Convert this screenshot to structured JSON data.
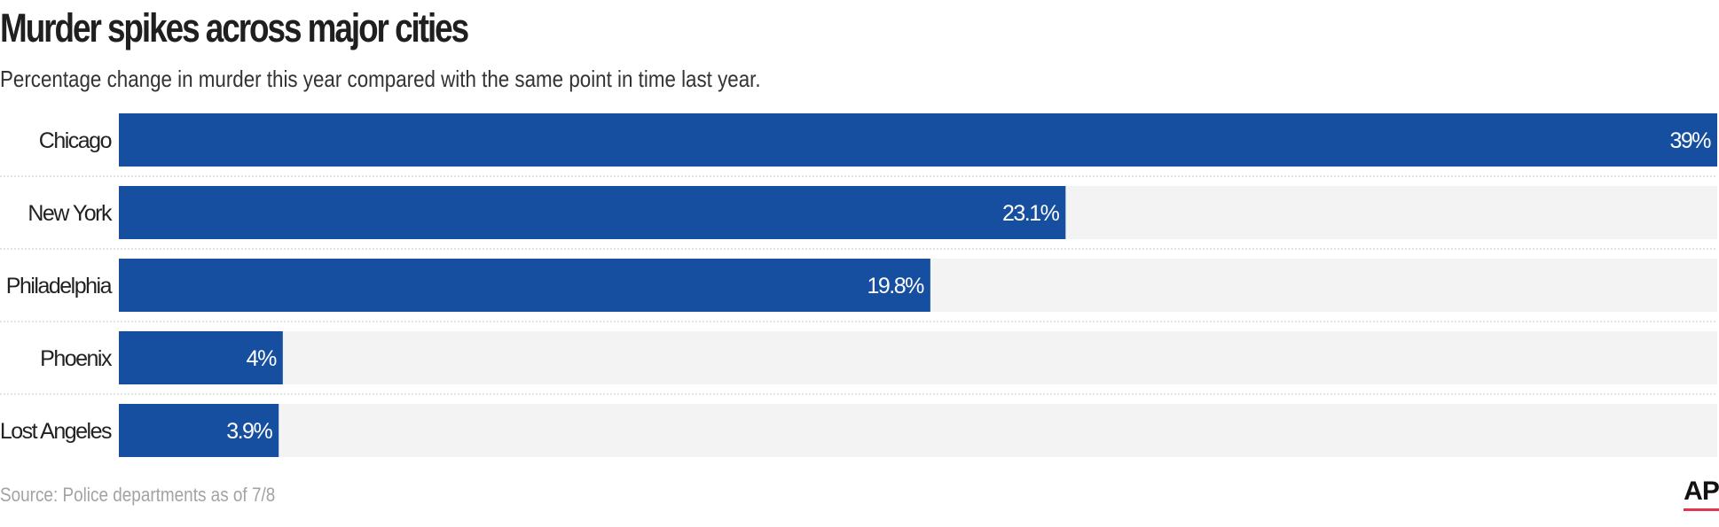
{
  "chart_data": {
    "type": "bar",
    "orientation": "horizontal",
    "title": "Murder spikes across major cities",
    "subtitle": "Percentage change in murder this year compared with the same point in time last year.",
    "categories": [
      "Chicago",
      "New York",
      "Philadelphia",
      "Phoenix",
      "Lost Angeles"
    ],
    "values": [
      39,
      23.1,
      19.8,
      4,
      3.9
    ],
    "data_labels": [
      "39%",
      "23.1%",
      "19.8%",
      "4%",
      "3.9%"
    ],
    "xlim": [
      0,
      39
    ],
    "source": "Source: Police departments as of 7/8",
    "colors": {
      "bar": "#164fa0",
      "track": "#f3f3f3",
      "separator": "#c8c8c8"
    },
    "grid": false,
    "legend": "none"
  },
  "logo": {
    "text": "AP"
  }
}
